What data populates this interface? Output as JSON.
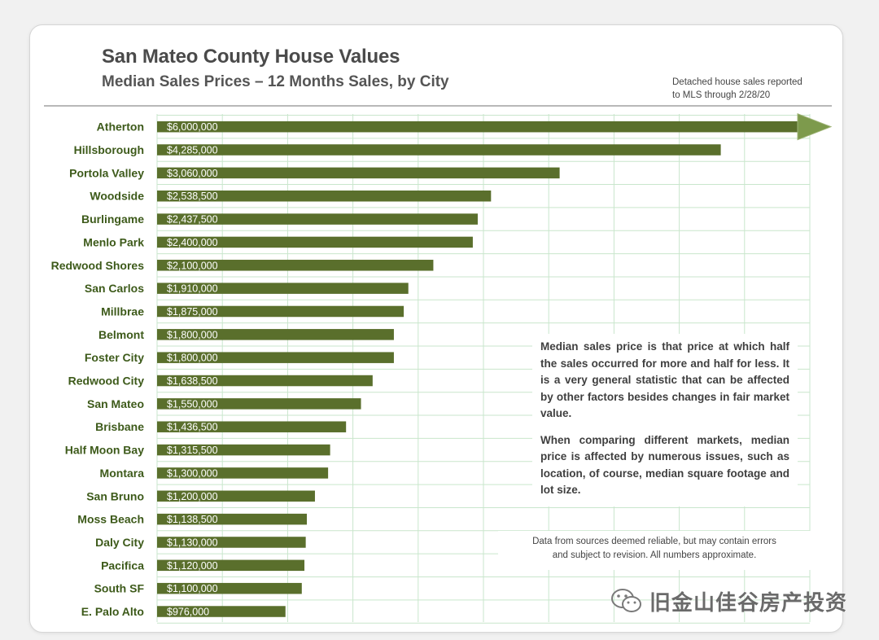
{
  "title": "San Mateo County House Values",
  "subtitle": "Median Sales Prices – 12 Months Sales, by City",
  "source_note_line1": "Detached house sales reported",
  "source_note_line2": "to MLS through 2/28/20",
  "callout_p1": "Median sales price is that price at which half the sales occurred for more and half for less. It is a very general statistic that can be affected by other factors besides changes in fair market value.",
  "callout_p2": "When comparing different markets, median price is affected by numerous issues, such as location, of course, median square footage and lot size.",
  "disclaimer_line1": "Data from sources deemed reliable, but may contain errors",
  "disclaimer_line2": "and subject to revision. All numbers approximate.",
  "watermark_text": "旧金山佳谷房产投资",
  "colors": {
    "bar": "#5a6f2c",
    "bar_label": "#ffffff",
    "grid": "#c9e6cc",
    "city_label": "#3d5a1a",
    "arrow": "#7d9a4c"
  },
  "chart_data": {
    "type": "bar",
    "orientation": "horizontal",
    "title": "San Mateo County House Values",
    "subtitle": "Median Sales Prices – 12 Months Sales, by City",
    "xlabel": "",
    "ylabel": "",
    "grid": true,
    "xlim": [
      0,
      5000000
    ],
    "note": "Atherton bar extends beyond chart edge (arrow)",
    "categories": [
      "Atherton",
      "Hillsborough",
      "Portola Valley",
      "Woodside",
      "Burlingame",
      "Menlo Park",
      "Redwood Shores",
      "San Carlos",
      "Millbrae",
      "Belmont",
      "Foster City",
      "Redwood City",
      "San Mateo",
      "Brisbane",
      "Half Moon Bay",
      "Montara",
      "San Bruno",
      "Moss Beach",
      "Daly City",
      "Pacifica",
      "South SF",
      "E. Palo Alto"
    ],
    "values": [
      6000000,
      4285000,
      3060000,
      2538500,
      2437500,
      2400000,
      2100000,
      1910000,
      1875000,
      1800000,
      1800000,
      1638500,
      1550000,
      1436500,
      1315500,
      1300000,
      1200000,
      1138500,
      1130000,
      1120000,
      1100000,
      976000
    ],
    "value_labels": [
      "$6,000,000",
      "$4,285,000",
      "$3,060,000",
      "$2,538,500",
      "$2,437,500",
      "$2,400,000",
      "$2,100,000",
      "$1,910,000",
      "$1,875,000",
      "$1,800,000",
      "$1,800,000",
      "$1,638,500",
      "$1,550,000",
      "$1,436,500",
      "$1,315,500",
      "$1,300,000",
      "$1,200,000",
      "$1,138,500",
      "$1,130,000",
      "$1,120,000",
      "$1,100,000",
      "$976,000"
    ]
  }
}
